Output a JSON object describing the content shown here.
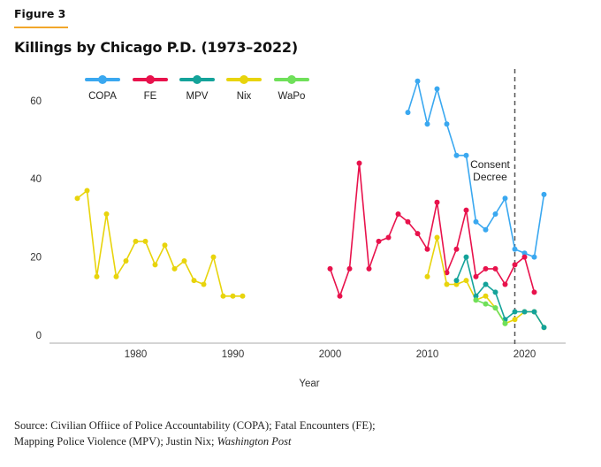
{
  "figure_label": "Figure 3",
  "source": {
    "prefix": "Source: Civilian Offiice of Police Accountability (COPA); Fatal Encounters (FE);",
    "line2_plain": "Mapping Police Violence (MPV); Justin Nix; ",
    "line2_italic": "Washington Post"
  },
  "chart_data": {
    "type": "line",
    "title": "Killings by Chicago P.D. (1973–2022)",
    "xlabel": "Year",
    "ylabel": "",
    "xlim": [
      1972,
      2024
    ],
    "ylim": [
      0,
      65
    ],
    "xticks": [
      1980,
      1990,
      2000,
      2010,
      2020
    ],
    "yticks": [
      0,
      20,
      40,
      60
    ],
    "grid": false,
    "legend_position": "top",
    "annotation": {
      "text_line1": "Consent",
      "text_line2": "Decree",
      "x": 2019,
      "style": "dashed vertical line"
    },
    "series": [
      {
        "name": "COPA",
        "color": "#3aa8f0",
        "points": [
          [
            2008,
            57
          ],
          [
            2009,
            65
          ],
          [
            2010,
            54
          ],
          [
            2011,
            63
          ],
          [
            2012,
            54
          ],
          [
            2013,
            46
          ],
          [
            2014,
            46
          ],
          [
            2015,
            29
          ],
          [
            2016,
            27
          ],
          [
            2017,
            31
          ],
          [
            2018,
            35
          ],
          [
            2019,
            22
          ],
          [
            2020,
            21
          ],
          [
            2021,
            20
          ],
          [
            2022,
            36
          ]
        ]
      },
      {
        "name": "FE",
        "color": "#e8124c",
        "points": [
          [
            2000,
            17
          ],
          [
            2001,
            10
          ],
          [
            2002,
            17
          ],
          [
            2003,
            44
          ],
          [
            2004,
            17
          ],
          [
            2005,
            24
          ],
          [
            2006,
            25
          ],
          [
            2007,
            31
          ],
          [
            2008,
            29
          ],
          [
            2009,
            26
          ],
          [
            2010,
            22
          ],
          [
            2011,
            34
          ],
          [
            2012,
            16
          ],
          [
            2013,
            22
          ],
          [
            2014,
            32
          ],
          [
            2015,
            15
          ],
          [
            2016,
            17
          ],
          [
            2017,
            17
          ],
          [
            2018,
            13
          ],
          [
            2019,
            18
          ],
          [
            2020,
            20
          ],
          [
            2021,
            11
          ]
        ]
      },
      {
        "name": "MPV",
        "color": "#14a39a",
        "points": [
          [
            2013,
            14
          ],
          [
            2014,
            20
          ],
          [
            2015,
            10
          ],
          [
            2016,
            13
          ],
          [
            2017,
            11
          ],
          [
            2018,
            4
          ],
          [
            2019,
            6
          ],
          [
            2020,
            6
          ],
          [
            2021,
            6
          ],
          [
            2022,
            2
          ]
        ]
      },
      {
        "name": "Nix",
        "color": "#e8d40c",
        "segments": [
          [
            [
              1974,
              35
            ],
            [
              1975,
              37
            ],
            [
              1976,
              15
            ],
            [
              1977,
              31
            ],
            [
              1978,
              15
            ],
            [
              1979,
              19
            ],
            [
              1980,
              24
            ],
            [
              1981,
              24
            ],
            [
              1982,
              18
            ],
            [
              1983,
              23
            ],
            [
              1984,
              17
            ],
            [
              1985,
              19
            ],
            [
              1986,
              14
            ],
            [
              1987,
              13
            ],
            [
              1988,
              20
            ],
            [
              1989,
              10
            ],
            [
              1990,
              10
            ],
            [
              1991,
              10
            ]
          ],
          [
            [
              2010,
              15
            ],
            [
              2011,
              25
            ],
            [
              2012,
              13
            ],
            [
              2013,
              13
            ],
            [
              2014,
              14
            ],
            [
              2015,
              9
            ],
            [
              2016,
              10
            ],
            [
              2017,
              7
            ],
            [
              2018,
              3
            ],
            [
              2019,
              4
            ],
            [
              2020,
              6
            ],
            [
              2021,
              6
            ],
            [
              2022,
              2
            ]
          ]
        ]
      },
      {
        "name": "WaPo",
        "color": "#6fe05a",
        "points": [
          [
            2015,
            9
          ],
          [
            2016,
            8
          ],
          [
            2017,
            7
          ],
          [
            2018,
            3
          ]
        ]
      }
    ]
  }
}
